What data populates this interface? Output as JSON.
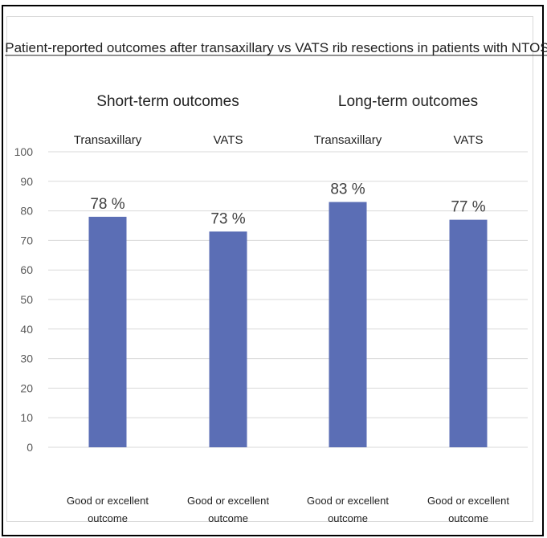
{
  "chart_data": {
    "type": "bar",
    "title": "Patient-reported outcomes after transaxillary vs VATS rib resections in patients with NTOS",
    "groups": [
      {
        "label": "Short-term outcomes",
        "subcategories": [
          "Transaxillary",
          "VATS"
        ]
      },
      {
        "label": "Long-term outcomes",
        "subcategories": [
          "Transaxillary",
          "VATS"
        ]
      }
    ],
    "categories": [
      "Good or excellent outcome",
      "Good or excellent outcome",
      "Good or excellent outcome",
      "Good or excellent outcome"
    ],
    "values": [
      78,
      73,
      83,
      77
    ],
    "data_labels": [
      "78 %",
      "73 %",
      "83 %",
      "77 %"
    ],
    "ylim": [
      0,
      100
    ],
    "yticks": [
      0,
      10,
      20,
      30,
      40,
      50,
      60,
      70,
      80,
      90,
      100
    ],
    "grid": true,
    "bar_color": "#5b6eb5",
    "xlabel": "",
    "ylabel": ""
  }
}
